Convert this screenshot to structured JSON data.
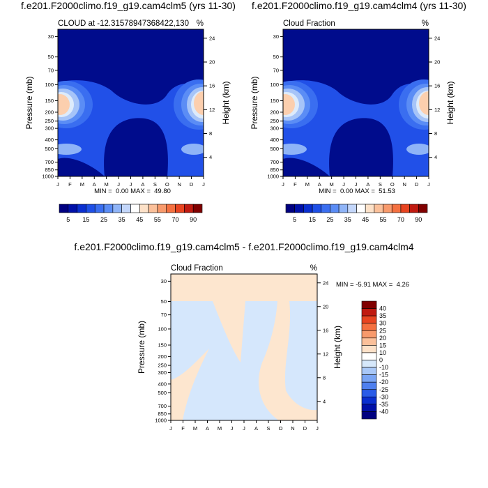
{
  "chart_data": [
    {
      "type": "contour",
      "title": "f.e201.F2000climo.f19_g19.cam4clm5 (yrs 11-30)",
      "subtitle_left": "CLOUD at -12.31578947368422,130",
      "subtitle_right": "%",
      "ylabel": "Pressure (mb)",
      "y2label": "Height (km)",
      "categories": [
        "J",
        "F",
        "M",
        "A",
        "M",
        "J",
        "J",
        "A",
        "S",
        "O",
        "N",
        "D",
        "J"
      ],
      "ylim": [
        1000,
        25
      ],
      "ylog": true,
      "yticks": [
        30,
        50,
        70,
        100,
        150,
        200,
        250,
        300,
        400,
        500,
        700,
        850,
        1000
      ],
      "y2lim": [
        0.8,
        25.5
      ],
      "y2ticks": [
        24,
        20,
        16,
        12,
        8,
        4
      ],
      "stats": "MIN =  0.00 MAX =  49.80",
      "colorbar": {
        "orientation": "horizontal",
        "labels": [
          5,
          15,
          25,
          35,
          45,
          55,
          70,
          90
        ],
        "colors": [
          "#000080",
          "#0010a8",
          "#0a2fd0",
          "#1e4fe6",
          "#3a6ef0",
          "#5a8cf5",
          "#8fb4f7",
          "#c3d6fa",
          "#ffffff",
          "#fde1c8",
          "#fbc09a",
          "#f89a6c",
          "#f47040",
          "#e84420",
          "#c01a10",
          "#800000"
        ]
      }
    },
    {
      "type": "contour",
      "title": "f.e201.F2000climo.f19_g19.cam4clm4 (yrs 11-30)",
      "subtitle_left": "Cloud Fraction",
      "subtitle_right": "%",
      "ylabel": "Pressure (mb)",
      "y2label": "Height (km)",
      "categories": [
        "J",
        "F",
        "M",
        "A",
        "M",
        "J",
        "J",
        "A",
        "S",
        "O",
        "N",
        "D",
        "J"
      ],
      "ylim": [
        1000,
        25
      ],
      "ylog": true,
      "yticks": [
        30,
        50,
        70,
        100,
        150,
        200,
        250,
        300,
        400,
        500,
        700,
        850,
        1000
      ],
      "y2lim": [
        0.8,
        25.5
      ],
      "y2ticks": [
        24,
        20,
        16,
        12,
        8,
        4
      ],
      "stats": "MIN =  0.00 MAX =  51.53",
      "colorbar": {
        "orientation": "horizontal",
        "labels": [
          5,
          15,
          25,
          35,
          45,
          55,
          70,
          90
        ],
        "colors": [
          "#000080",
          "#0010a8",
          "#0a2fd0",
          "#1e4fe6",
          "#3a6ef0",
          "#5a8cf5",
          "#8fb4f7",
          "#c3d6fa",
          "#ffffff",
          "#fde1c8",
          "#fbc09a",
          "#f89a6c",
          "#f47040",
          "#e84420",
          "#c01a10",
          "#800000"
        ]
      }
    },
    {
      "type": "contour",
      "title": "f.e201.F2000climo.f19_g19.cam4clm5 - f.e201.F2000climo.f19_g19.cam4clm4",
      "subtitle_left": "Cloud Fraction",
      "subtitle_right": "%",
      "ylabel": "Pressure (mb)",
      "y2label": "Height (km)",
      "categories": [
        "J",
        "F",
        "M",
        "A",
        "M",
        "J",
        "J",
        "A",
        "S",
        "O",
        "N",
        "D",
        "J"
      ],
      "ylim": [
        1000,
        25
      ],
      "ylog": true,
      "yticks": [
        30,
        50,
        70,
        100,
        150,
        200,
        250,
        300,
        400,
        500,
        700,
        850,
        1000
      ],
      "y2lim": [
        0.8,
        25.5
      ],
      "y2ticks": [
        24,
        20,
        16,
        12,
        8,
        4
      ],
      "stats": "MIN = -5.91 MAX =  4.26",
      "colorbar": {
        "orientation": "vertical",
        "labels": [
          40,
          35,
          30,
          25,
          20,
          15,
          10,
          0,
          -10,
          -15,
          -20,
          -25,
          -30,
          -35,
          -40
        ],
        "colors": [
          "#800000",
          "#c01a10",
          "#e84420",
          "#f47040",
          "#f89a6c",
          "#fbc09a",
          "#fde1c8",
          "#ffffff",
          "#d6e8fb",
          "#a9c8f8",
          "#7aa5f4",
          "#4f80ef",
          "#2a5ce8",
          "#0a2fd0",
          "#0010a8",
          "#000080"
        ]
      }
    }
  ]
}
